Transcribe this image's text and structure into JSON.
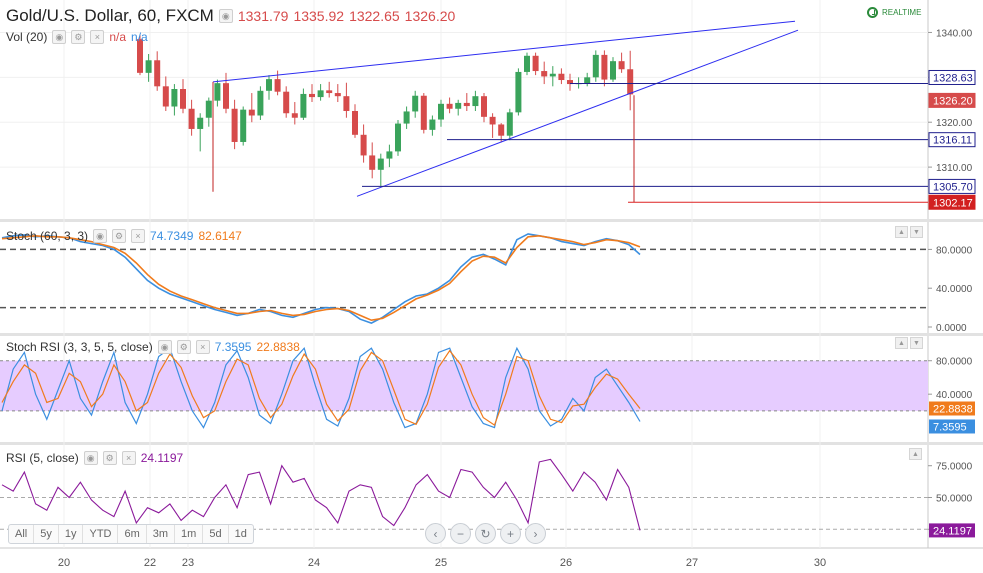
{
  "instrument": {
    "title": "Gold/U.S. Dollar, 60, FXCM",
    "open": "1331.79",
    "high": "1335.92",
    "low": "1322.65",
    "close": "1326.20"
  },
  "realtime": "REALTIME",
  "volume": {
    "label": "Vol (20)",
    "value1": "n/a",
    "value2": "n/a"
  },
  "stoch": {
    "label": "Stoch (60, 3, 3)",
    "k": "74.7349",
    "d": "82.6147"
  },
  "stoch_rsi": {
    "label": "Stoch RSI (3, 3, 5, 5, close)",
    "k": "7.3595",
    "d": "22.8838"
  },
  "rsi": {
    "label": "RSI (5, close)",
    "value": "24.1197"
  },
  "range_buttons": [
    "All",
    "5y",
    "1y",
    "YTD",
    "6m",
    "3m",
    "1m",
    "5d",
    "1d"
  ],
  "nav_icons": [
    "chevron-left-icon",
    "minus-icon",
    "reset-icon",
    "plus-icon",
    "chevron-right-icon"
  ],
  "colors": {
    "up": "#3aa35b",
    "down": "#d64b4b",
    "trend": "#2d2df0",
    "stoch_k": "#3b8fe0",
    "stoch_d": "#f07b1c",
    "rsi": "#8b1a9b",
    "band": "#e6ccff"
  },
  "chart_data": [
    {
      "type": "candlestick",
      "title": "Gold/U.S. Dollar, 60, FXCM",
      "x_ticks": [
        "20",
        "22",
        "23",
        "24",
        "25",
        "26",
        "27",
        "30"
      ],
      "y_ticks": [
        "1310.00",
        "1320.00",
        "1330.00",
        "1340.00"
      ],
      "ylim": [
        1300,
        1345
      ],
      "price_labels": [
        {
          "value": "1328.63",
          "style": "trend"
        },
        {
          "value": "1326.20",
          "style": "last"
        },
        {
          "value": "1316.11",
          "style": "trend"
        },
        {
          "value": "1305.70",
          "style": "trend"
        },
        {
          "value": "1302.17",
          "style": "alert"
        }
      ],
      "horizontal_levels": [
        1328.63,
        1316.11,
        1305.7,
        1302.17
      ],
      "ohlc": [
        [
          1338.5,
          1339.5,
          1330.5,
          1331.0
        ],
        [
          1331.0,
          1335.2,
          1329.0,
          1333.8
        ],
        [
          1333.8,
          1335.8,
          1327.0,
          1328.0
        ],
        [
          1328.0,
          1330.2,
          1322.5,
          1323.5
        ],
        [
          1323.5,
          1328.5,
          1321.5,
          1327.4
        ],
        [
          1327.4,
          1329.6,
          1322.0,
          1323.0
        ],
        [
          1323.0,
          1325.0,
          1317.0,
          1318.5
        ],
        [
          1318.5,
          1322.0,
          1313.5,
          1321.0
        ],
        [
          1321.0,
          1325.5,
          1319.0,
          1324.8
        ],
        [
          1324.8,
          1329.5,
          1323.5,
          1328.7
        ],
        [
          1328.7,
          1331.0,
          1322.0,
          1323.0
        ],
        [
          1323.0,
          1325.0,
          1314.0,
          1315.6
        ],
        [
          1315.6,
          1323.5,
          1314.8,
          1322.8
        ],
        [
          1322.8,
          1326.5,
          1320.0,
          1321.5
        ],
        [
          1321.5,
          1328.0,
          1320.5,
          1327.0
        ],
        [
          1327.0,
          1330.5,
          1325.0,
          1329.6
        ],
        [
          1329.6,
          1331.5,
          1326.0,
          1326.8
        ],
        [
          1326.8,
          1328.0,
          1321.0,
          1322.0
        ],
        [
          1322.0,
          1324.5,
          1319.5,
          1321.0
        ],
        [
          1321.0,
          1327.5,
          1320.5,
          1326.3
        ],
        [
          1326.3,
          1328.5,
          1324.5,
          1325.6
        ],
        [
          1325.6,
          1328.5,
          1324.8,
          1327.1
        ],
        [
          1327.1,
          1329.0,
          1325.5,
          1326.5
        ],
        [
          1326.5,
          1328.5,
          1324.5,
          1325.8
        ],
        [
          1325.8,
          1328.8,
          1321.0,
          1322.5
        ],
        [
          1322.5,
          1324.0,
          1316.5,
          1317.2
        ],
        [
          1317.2,
          1319.5,
          1311.0,
          1312.6
        ],
        [
          1312.6,
          1315.5,
          1307.5,
          1309.4
        ],
        [
          1309.4,
          1313.0,
          1305.8,
          1311.9
        ],
        [
          1311.9,
          1315.0,
          1310.0,
          1313.5
        ],
        [
          1313.5,
          1320.5,
          1312.5,
          1319.7
        ],
        [
          1319.7,
          1323.5,
          1318.5,
          1322.4
        ],
        [
          1322.4,
          1327.0,
          1321.0,
          1325.9
        ],
        [
          1325.9,
          1326.5,
          1317.5,
          1318.3
        ],
        [
          1318.3,
          1321.5,
          1317.0,
          1320.6
        ],
        [
          1320.6,
          1325.0,
          1319.0,
          1324.1
        ],
        [
          1324.1,
          1325.5,
          1322.0,
          1323.0
        ],
        [
          1323.0,
          1325.0,
          1321.5,
          1324.3
        ],
        [
          1324.3,
          1326.5,
          1322.5,
          1323.6
        ],
        [
          1323.6,
          1327.0,
          1322.5,
          1325.8
        ],
        [
          1325.8,
          1326.5,
          1320.0,
          1321.2
        ],
        [
          1321.2,
          1322.0,
          1316.5,
          1319.5
        ],
        [
          1319.5,
          1319.8,
          1315.5,
          1317.0
        ],
        [
          1317.0,
          1323.0,
          1316.0,
          1322.2
        ],
        [
          1322.2,
          1332.0,
          1321.5,
          1331.2
        ],
        [
          1331.2,
          1335.5,
          1330.5,
          1334.8
        ],
        [
          1334.8,
          1335.5,
          1330.5,
          1331.4
        ],
        [
          1331.4,
          1333.5,
          1328.5,
          1330.2
        ],
        [
          1330.2,
          1332.5,
          1328.0,
          1330.8
        ],
        [
          1330.8,
          1332.0,
          1328.5,
          1329.4
        ],
        [
          1329.4,
          1330.8,
          1327.0,
          1328.5
        ],
        [
          1328.5,
          1330.0,
          1327.5,
          1328.7
        ],
        [
          1328.7,
          1331.0,
          1328.0,
          1330.0
        ],
        [
          1330.0,
          1336.0,
          1329.0,
          1335.0
        ],
        [
          1335.0,
          1336.0,
          1328.0,
          1329.5
        ],
        [
          1329.5,
          1334.5,
          1329.0,
          1333.6
        ],
        [
          1333.6,
          1335.5,
          1331.0,
          1331.8
        ],
        [
          1331.8,
          1335.92,
          1322.65,
          1326.2
        ]
      ]
    },
    {
      "type": "line",
      "title": "Stoch (60, 3, 3)",
      "y_ticks": [
        "0.0000",
        "40.0000",
        "80.0000"
      ],
      "ylim": [
        0,
        100
      ],
      "reference_lines": [
        80,
        20
      ],
      "series": [
        {
          "name": "74.7349",
          "values": [
            92,
            94,
            95,
            93,
            94,
            93,
            92,
            88,
            86,
            84,
            80,
            72,
            60,
            48,
            40,
            34,
            30,
            26,
            22,
            18,
            15,
            12,
            14,
            18,
            16,
            12,
            10,
            14,
            18,
            20,
            19,
            16,
            8,
            4,
            10,
            18,
            26,
            32,
            34,
            40,
            48,
            62,
            72,
            75,
            70,
            64,
            90,
            96,
            94,
            92,
            88,
            86,
            84,
            88,
            91,
            89,
            85,
            74.73
          ]
        },
        {
          "name": "82.6147",
          "values": [
            91,
            92,
            93,
            94,
            93,
            93,
            92,
            90,
            88,
            85,
            82,
            76,
            66,
            54,
            44,
            37,
            32,
            28,
            24,
            20,
            17,
            14,
            14,
            16,
            17,
            14,
            12,
            13,
            16,
            18,
            19,
            17,
            12,
            7,
            9,
            15,
            22,
            29,
            33,
            38,
            45,
            57,
            68,
            73,
            72,
            66,
            82,
            93,
            94,
            92,
            90,
            88,
            85,
            87,
            90,
            89,
            87,
            82.61
          ]
        }
      ]
    },
    {
      "type": "line",
      "title": "Stoch RSI (3, 3, 5, 5, close)",
      "y_ticks": [
        "40.0000",
        "80.0000"
      ],
      "ylim": [
        -10,
        100
      ],
      "band": [
        20,
        80
      ],
      "series": [
        {
          "name": "7.3595",
          "values": [
            20,
            70,
            90,
            40,
            10,
            45,
            80,
            35,
            15,
            55,
            90,
            30,
            5,
            40,
            85,
            95,
            55,
            20,
            0,
            30,
            75,
            92,
            60,
            15,
            5,
            40,
            80,
            95,
            50,
            10,
            2,
            35,
            85,
            95,
            70,
            30,
            0,
            5,
            40,
            90,
            95,
            60,
            25,
            5,
            0,
            60,
            95,
            70,
            20,
            2,
            10,
            35,
            20,
            60,
            70,
            50,
            30,
            7.36
          ]
        },
        {
          "name": "22.8838",
          "values": [
            30,
            55,
            75,
            65,
            30,
            35,
            65,
            55,
            25,
            40,
            75,
            55,
            20,
            30,
            65,
            88,
            72,
            38,
            12,
            20,
            55,
            82,
            75,
            35,
            12,
            28,
            62,
            88,
            70,
            28,
            8,
            22,
            68,
            90,
            80,
            45,
            10,
            4,
            28,
            72,
            92,
            75,
            40,
            12,
            3,
            40,
            85,
            80,
            38,
            10,
            6,
            26,
            28,
            48,
            64,
            58,
            40,
            22.88
          ]
        }
      ]
    },
    {
      "type": "line",
      "title": "RSI (5, close)",
      "y_ticks": [
        "25.0000",
        "50.0000",
        "75.0000"
      ],
      "ylim": [
        15,
        85
      ],
      "reference_lines": [
        50,
        25
      ],
      "series": [
        {
          "name": "24.1197",
          "values": [
            60,
            55,
            70,
            45,
            40,
            58,
            50,
            62,
            48,
            40,
            35,
            55,
            30,
            42,
            38,
            45,
            32,
            40,
            35,
            50,
            60,
            42,
            68,
            70,
            45,
            75,
            62,
            65,
            48,
            42,
            30,
            55,
            60,
            58,
            35,
            28,
            42,
            60,
            68,
            55,
            50,
            72,
            70,
            58,
            50,
            62,
            48,
            30,
            78,
            80,
            68,
            55,
            70,
            62,
            48,
            72,
            58,
            24.12
          ]
        }
      ]
    }
  ]
}
